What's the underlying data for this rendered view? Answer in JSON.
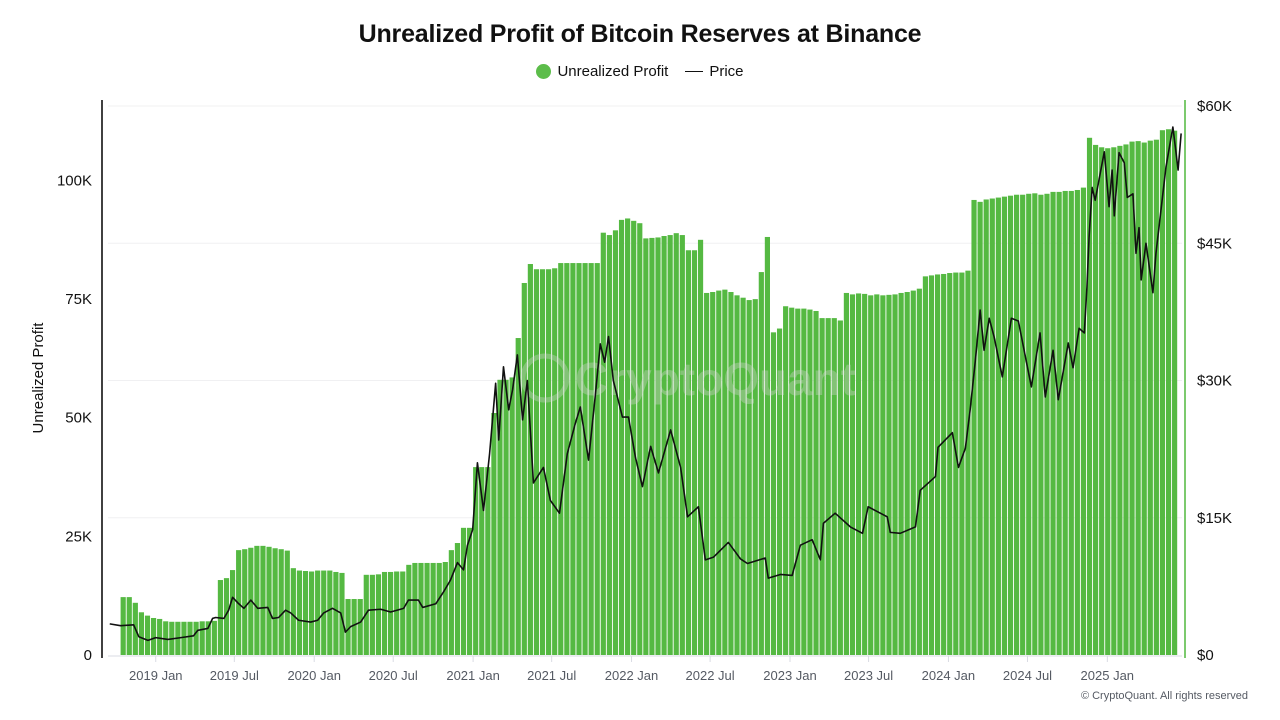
{
  "footer": {
    "copyright": "© CryptoQuant. All rights reserved"
  },
  "watermark": {
    "text": "CryptoQuant"
  },
  "chart_data": {
    "type": "bar+line",
    "title": "Unrealized Profit of Bitcoin Reserves at Binance",
    "legend": {
      "placement": "top-center",
      "items": [
        {
          "label": "Unrealized Profit",
          "marker": "circle",
          "color": "#5cbd4a"
        },
        {
          "label": "Price",
          "marker": "line",
          "color": "#111111"
        }
      ]
    },
    "grid": true,
    "xlim": [
      "2018-09-13",
      "2025-06-22"
    ],
    "x_ticks": [
      {
        "date": "2019-01-01",
        "label": "2019 Jan"
      },
      {
        "date": "2019-07-01",
        "label": "2019 Jul"
      },
      {
        "date": "2020-01-01",
        "label": "2020 Jan"
      },
      {
        "date": "2020-07-01",
        "label": "2020 Jul"
      },
      {
        "date": "2021-01-01",
        "label": "2021 Jan"
      },
      {
        "date": "2021-07-01",
        "label": "2021 Jul"
      },
      {
        "date": "2022-01-01",
        "label": "2022 Jan"
      },
      {
        "date": "2022-07-01",
        "label": "2022 Jul"
      },
      {
        "date": "2023-01-01",
        "label": "2023 Jan"
      },
      {
        "date": "2023-07-01",
        "label": "2023 Jul"
      },
      {
        "date": "2024-01-01",
        "label": "2024 Jan"
      },
      {
        "date": "2024-07-01",
        "label": "2024 Jul"
      },
      {
        "date": "2025-01-01",
        "label": "2025 Jan"
      }
    ],
    "y_left": {
      "label": "Unrealized Profit",
      "lim": [
        0,
        115700
      ],
      "ticks": [
        {
          "value": 0,
          "label": "0"
        },
        {
          "value": 25000,
          "label": "25K"
        },
        {
          "value": 50000,
          "label": "50K"
        },
        {
          "value": 75000,
          "label": "75K"
        },
        {
          "value": 100000,
          "label": "100K"
        }
      ]
    },
    "y_right": {
      "label": "",
      "lim": [
        0,
        60000
      ],
      "ticks": [
        {
          "value": 0,
          "label": "$0"
        },
        {
          "value": 15000,
          "label": "$15K"
        },
        {
          "value": 30000,
          "label": "$30K"
        },
        {
          "value": 45000,
          "label": "$45K"
        },
        {
          "value": 60000,
          "label": "$60K"
        }
      ]
    },
    "series": [
      {
        "name": "Unrealized Profit",
        "type": "bar",
        "axis": "left",
        "color": "#55b942",
        "x_start": "2018-10-19",
        "x_step_days": 14,
        "values": [
          12200,
          12200,
          11000,
          9000,
          8300,
          7800,
          7600,
          7100,
          7000,
          7000,
          7000,
          7000,
          7000,
          7100,
          7100,
          7200,
          15800,
          16200,
          17900,
          22100,
          22300,
          22600,
          23000,
          23000,
          22800,
          22500,
          22300,
          22000,
          18300,
          17800,
          17700,
          17600,
          17800,
          17800,
          17800,
          17500,
          17300,
          11800,
          11800,
          11800,
          16900,
          16900,
          17000,
          17500,
          17500,
          17600,
          17600,
          19000,
          19400,
          19400,
          19400,
          19400,
          19400,
          19600,
          22100,
          23600,
          26800,
          26800,
          39600,
          39600,
          39600,
          51000,
          58000,
          58000,
          58500,
          66800,
          78400,
          82400,
          81300,
          81300,
          81300,
          81500,
          82600,
          82600,
          82600,
          82600,
          82600,
          82600,
          82600,
          89000,
          88500,
          89500,
          91700,
          92000,
          91500,
          91000,
          87800,
          87900,
          88000,
          88300,
          88500,
          88900,
          88500,
          85300,
          85300,
          87500,
          76300,
          76500,
          76800,
          77000,
          76500,
          75800,
          75300,
          74800,
          75000,
          80700,
          88100,
          68000,
          68800,
          73500,
          73200,
          73000,
          73000,
          72800,
          72500,
          71000,
          71000,
          71000,
          70500,
          76300,
          76000,
          76200,
          76100,
          75800,
          76000,
          75800,
          75900,
          76000,
          76300,
          76500,
          76800,
          77200,
          79800,
          80000,
          80200,
          80300,
          80500,
          80600,
          80600,
          81000,
          95900,
          95500,
          96000,
          96200,
          96400,
          96600,
          96800,
          97000,
          97000,
          97200,
          97300,
          97000,
          97200,
          97600,
          97600,
          97800,
          97800,
          98000,
          98500,
          109000,
          107500,
          107000,
          106800,
          107000,
          107300,
          107600,
          108200,
          108300,
          108000,
          108400,
          108600,
          110600,
          110800,
          110500
        ]
      },
      {
        "name": "Price",
        "type": "line",
        "axis": "right",
        "color": "#111111",
        "points": [
          [
            "2018-09-17",
            3400
          ],
          [
            "2018-10-12",
            3200
          ],
          [
            "2018-11-11",
            3300
          ],
          [
            "2018-11-23",
            2000
          ],
          [
            "2018-12-14",
            1600
          ],
          [
            "2019-01-01",
            1900
          ],
          [
            "2019-01-29",
            1700
          ],
          [
            "2019-02-28",
            1900
          ],
          [
            "2019-03-29",
            2100
          ],
          [
            "2019-04-08",
            2700
          ],
          [
            "2019-05-01",
            2900
          ],
          [
            "2019-05-12",
            4000
          ],
          [
            "2019-05-19",
            4100
          ],
          [
            "2019-06-07",
            4000
          ],
          [
            "2019-06-18",
            4900
          ],
          [
            "2019-06-27",
            6300
          ],
          [
            "2019-07-09",
            5700
          ],
          [
            "2019-07-23",
            5100
          ],
          [
            "2019-08-08",
            6000
          ],
          [
            "2019-08-24",
            5100
          ],
          [
            "2019-09-16",
            5200
          ],
          [
            "2019-09-27",
            4000
          ],
          [
            "2019-10-11",
            4100
          ],
          [
            "2019-10-27",
            4900
          ],
          [
            "2019-11-08",
            4600
          ],
          [
            "2019-11-26",
            3800
          ],
          [
            "2019-12-24",
            3600
          ],
          [
            "2020-01-09",
            3800
          ],
          [
            "2020-01-23",
            4600
          ],
          [
            "2020-02-12",
            5100
          ],
          [
            "2020-03-02",
            4600
          ],
          [
            "2020-03-13",
            2500
          ],
          [
            "2020-03-25",
            3100
          ],
          [
            "2020-04-17",
            3600
          ],
          [
            "2020-05-05",
            4900
          ],
          [
            "2020-06-02",
            5000
          ],
          [
            "2020-06-25",
            4700
          ],
          [
            "2020-07-25",
            5100
          ],
          [
            "2020-08-05",
            6000
          ],
          [
            "2020-08-28",
            6000
          ],
          [
            "2020-09-07",
            5200
          ],
          [
            "2020-10-07",
            5600
          ],
          [
            "2020-10-25",
            6900
          ],
          [
            "2020-11-10",
            8200
          ],
          [
            "2020-11-26",
            10100
          ],
          [
            "2020-12-10",
            9300
          ],
          [
            "2020-12-19",
            12000
          ],
          [
            "2020-12-31",
            13700
          ],
          [
            "2021-01-11",
            21000
          ],
          [
            "2021-01-25",
            15800
          ],
          [
            "2021-02-08",
            22000
          ],
          [
            "2021-02-22",
            29700
          ],
          [
            "2021-03-01",
            23500
          ],
          [
            "2021-03-12",
            31500
          ],
          [
            "2021-03-24",
            26800
          ],
          [
            "2021-04-02",
            29000
          ],
          [
            "2021-04-13",
            32800
          ],
          [
            "2021-04-25",
            25700
          ],
          [
            "2021-05-06",
            30000
          ],
          [
            "2021-05-20",
            18800
          ],
          [
            "2021-06-12",
            20500
          ],
          [
            "2021-06-28",
            16900
          ],
          [
            "2021-07-19",
            15500
          ],
          [
            "2021-08-06",
            22000
          ],
          [
            "2021-08-25",
            25400
          ],
          [
            "2021-09-05",
            27100
          ],
          [
            "2021-09-24",
            21300
          ],
          [
            "2021-10-10",
            28600
          ],
          [
            "2021-10-21",
            34000
          ],
          [
            "2021-10-31",
            32000
          ],
          [
            "2021-11-09",
            34800
          ],
          [
            "2021-11-20",
            30000
          ],
          [
            "2021-12-11",
            26000
          ],
          [
            "2021-12-25",
            26000
          ],
          [
            "2022-01-10",
            21600
          ],
          [
            "2022-01-26",
            18400
          ],
          [
            "2022-02-14",
            22800
          ],
          [
            "2022-03-04",
            19900
          ],
          [
            "2022-04-01",
            24600
          ],
          [
            "2022-04-24",
            20500
          ],
          [
            "2022-05-10",
            15100
          ],
          [
            "2022-06-04",
            16200
          ],
          [
            "2022-06-20",
            10400
          ],
          [
            "2022-07-09",
            10700
          ],
          [
            "2022-08-12",
            12300
          ],
          [
            "2022-09-09",
            10500
          ],
          [
            "2022-09-25",
            10000
          ],
          [
            "2022-11-05",
            10600
          ],
          [
            "2022-11-12",
            8400
          ],
          [
            "2022-12-10",
            8800
          ],
          [
            "2023-01-06",
            8700
          ],
          [
            "2023-01-25",
            12000
          ],
          [
            "2023-02-21",
            12600
          ],
          [
            "2023-03-12",
            10400
          ],
          [
            "2023-03-19",
            14400
          ],
          [
            "2023-04-15",
            15500
          ],
          [
            "2023-05-20",
            14000
          ],
          [
            "2023-06-17",
            13300
          ],
          [
            "2023-06-30",
            16200
          ],
          [
            "2023-08-13",
            15100
          ],
          [
            "2023-08-20",
            13400
          ],
          [
            "2023-09-12",
            13300
          ],
          [
            "2023-10-17",
            14000
          ],
          [
            "2023-10-28",
            18000
          ],
          [
            "2023-12-02",
            19500
          ],
          [
            "2023-12-08",
            22700
          ],
          [
            "2024-01-10",
            24300
          ],
          [
            "2024-01-24",
            20500
          ],
          [
            "2024-02-09",
            22600
          ],
          [
            "2024-02-20",
            26800
          ],
          [
            "2024-03-03",
            32200
          ],
          [
            "2024-03-14",
            37700
          ],
          [
            "2024-03-23",
            33300
          ],
          [
            "2024-04-04",
            36800
          ],
          [
            "2024-04-15",
            34800
          ],
          [
            "2024-05-04",
            30400
          ],
          [
            "2024-05-25",
            36800
          ],
          [
            "2024-06-10",
            36500
          ],
          [
            "2024-07-10",
            29300
          ],
          [
            "2024-07-30",
            35200
          ],
          [
            "2024-08-11",
            28200
          ],
          [
            "2024-08-29",
            33300
          ],
          [
            "2024-09-10",
            27900
          ],
          [
            "2024-10-03",
            34100
          ],
          [
            "2024-10-14",
            31400
          ],
          [
            "2024-10-28",
            35700
          ],
          [
            "2024-11-09",
            35200
          ],
          [
            "2024-11-15",
            40200
          ],
          [
            "2024-11-20",
            45700
          ],
          [
            "2024-11-27",
            51100
          ],
          [
            "2024-12-04",
            49700
          ],
          [
            "2024-12-25",
            55000
          ],
          [
            "2025-01-05",
            49000
          ],
          [
            "2025-01-12",
            53000
          ],
          [
            "2025-01-17",
            48000
          ],
          [
            "2025-01-28",
            54900
          ],
          [
            "2025-02-09",
            53800
          ],
          [
            "2025-02-16",
            50000
          ],
          [
            "2025-03-01",
            50400
          ],
          [
            "2025-03-08",
            43900
          ],
          [
            "2025-03-15",
            46700
          ],
          [
            "2025-03-20",
            41000
          ],
          [
            "2025-03-31",
            45000
          ],
          [
            "2025-04-16",
            39600
          ],
          [
            "2025-04-23",
            43900
          ],
          [
            "2025-05-05",
            48800
          ],
          [
            "2025-05-16",
            53300
          ],
          [
            "2025-06-01",
            57700
          ],
          [
            "2025-06-08",
            55000
          ],
          [
            "2025-06-13",
            53000
          ],
          [
            "2025-06-20",
            57000
          ]
        ]
      }
    ]
  }
}
